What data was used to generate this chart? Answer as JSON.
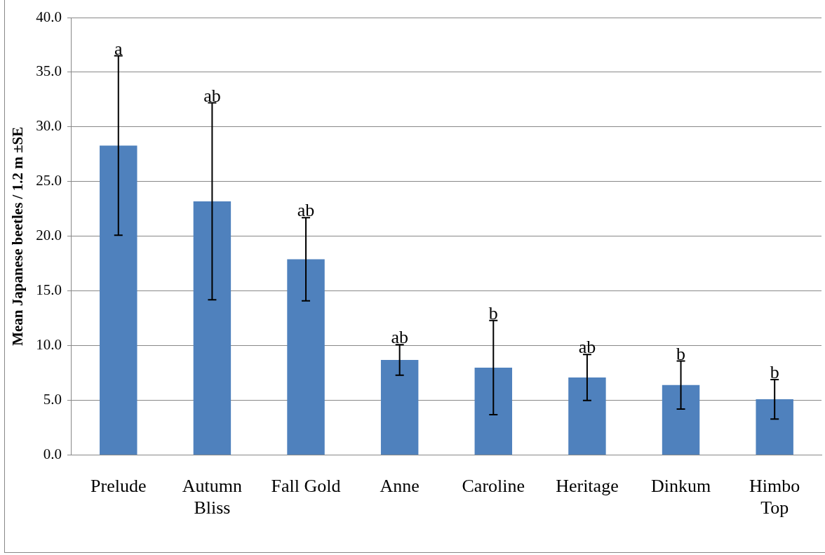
{
  "chart_data": {
    "type": "bar",
    "ylabel": "Mean Japanese beetles / 1.2 m ±SE",
    "categories": [
      "Prelude",
      "Autumn Bliss",
      "Fall Gold",
      "Anne",
      "Caroline",
      "Heritage",
      "Dinkum",
      "Himbo Top"
    ],
    "values": [
      28.3,
      23.2,
      17.9,
      8.7,
      8.0,
      7.1,
      6.4,
      5.1
    ],
    "errors": [
      8.2,
      9.0,
      3.8,
      1.4,
      4.3,
      2.1,
      2.2,
      1.8
    ],
    "color": "#4f81bd",
    "ylim": [
      0,
      40
    ],
    "yticks": [
      {
        "value": 0,
        "label": "0.0"
      },
      {
        "value": 5,
        "label": "5.0"
      },
      {
        "value": 10,
        "label": "10.0"
      },
      {
        "value": 15,
        "label": "15.0"
      },
      {
        "value": 20,
        "label": "20.0"
      },
      {
        "value": 25,
        "label": "25.0"
      },
      {
        "value": 30,
        "label": "30.0"
      },
      {
        "value": 35,
        "label": "35.0"
      },
      {
        "value": 40,
        "label": "40.0"
      }
    ],
    "grid": "y",
    "legend": false,
    "annotations": [
      {
        "text": "a",
        "x": "Prelude",
        "y": 36.5
      },
      {
        "text": "ab",
        "x": "Autumn Bliss",
        "y": 32.2
      },
      {
        "text": "ab",
        "x": "Fall Gold",
        "y": 21.7
      },
      {
        "text": "ab",
        "x": "Anne",
        "y": 10.1
      },
      {
        "text": "b",
        "x": "Caroline",
        "y": 12.3
      },
      {
        "text": "ab",
        "x": "Heritage",
        "y": 9.2
      },
      {
        "text": "b",
        "x": "Dinkum",
        "y": 8.6
      },
      {
        "text": "b",
        "x": "Himbo Top",
        "y": 6.9
      }
    ]
  }
}
